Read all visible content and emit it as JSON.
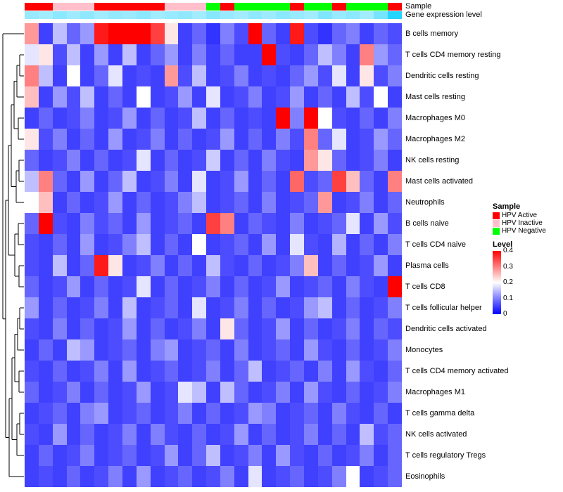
{
  "annotation_tracks": {
    "sample_label": "Sample",
    "expression_label": "Gene expression level"
  },
  "legend": {
    "sample": {
      "title": "Sample",
      "items": [
        {
          "label": "HPV Active",
          "color": "#FF0000"
        },
        {
          "label": "HPV Inactive",
          "color": "#FFC0CB"
        },
        {
          "label": "HPV Negative",
          "color": "#00FF00"
        }
      ]
    },
    "level": {
      "title": "Level",
      "ticks": [
        "0.4",
        "0.3",
        "0.2",
        "0.1",
        "0"
      ],
      "gradient": [
        "#FF0000",
        "#FFFFFF",
        "#0000FF"
      ]
    }
  },
  "chart_data": {
    "type": "heatmap",
    "title": "",
    "rows": [
      "B cells memory",
      "T cells CD4 memory resting",
      "Dendritic cells resting",
      "Mast cells resting",
      "Macrophages M0",
      "Macrophages M2",
      "NK cells resting",
      "Mast cells activated",
      "Neutrophils",
      "B cells naive",
      "T cells CD4 naive",
      "Plasma cells",
      "T cells CD8",
      "T cells follicular helper",
      "Dendritic cells activated",
      "Monocytes",
      "T cells CD4 memory activated",
      "Macrophages M1",
      "T cells gamma delta",
      "NK cells activated",
      "T cells regulatory Tregs",
      "Eosinophils"
    ],
    "n_cols": 27,
    "column_annotations": {
      "sample": [
        "HPV Active",
        "HPV Active",
        "HPV Inactive",
        "HPV Inactive",
        "HPV Inactive",
        "HPV Active",
        "HPV Active",
        "HPV Active",
        "HPV Active",
        "HPV Active",
        "HPV Inactive",
        "HPV Inactive",
        "HPV Inactive",
        "HPV Negative",
        "HPV Active",
        "HPV Negative",
        "HPV Negative",
        "HPV Negative",
        "HPV Negative",
        "HPV Active",
        "HPV Negative",
        "HPV Negative",
        "HPV Active",
        "HPV Negative",
        "HPV Negative",
        "HPV Negative",
        "HPV Active"
      ],
      "gene_expression_level": [
        0.35,
        0.3,
        0.4,
        0.32,
        0.38,
        0.3,
        0.36,
        0.33,
        0.4,
        0.3,
        0.35,
        0.38,
        0.3,
        0.42,
        0.35,
        0.3,
        0.38,
        0.32,
        0.4,
        0.35,
        0.3,
        0.45,
        0.35,
        0.4,
        0.3,
        0.5,
        0.85
      ]
    },
    "color_scale": {
      "min": 0,
      "mid": 0.2,
      "max": 0.4,
      "min_color": "#0000FF",
      "mid_color": "#FFFFFF",
      "max_color": "#FF0000"
    },
    "annotation_expression_colors": {
      "low": "#E8F8FF",
      "high": "#00CFFF"
    },
    "values": [
      [
        0.28,
        0.05,
        0.15,
        0.08,
        0.12,
        0.38,
        0.42,
        0.45,
        0.4,
        0.35,
        0.22,
        0.05,
        0.08,
        0.04,
        0.1,
        0.06,
        0.4,
        0.08,
        0.05,
        0.38,
        0.06,
        0.04,
        0.08,
        0.1,
        0.05,
        0.08,
        0.06
      ],
      [
        0.18,
        0.22,
        0.06,
        0.15,
        0.05,
        0.12,
        0.05,
        0.15,
        0.05,
        0.08,
        0.12,
        0.05,
        0.1,
        0.05,
        0.08,
        0.05,
        0.05,
        0.42,
        0.06,
        0.05,
        0.08,
        0.15,
        0.1,
        0.05,
        0.3,
        0.12,
        0.08
      ],
      [
        0.3,
        0.15,
        0.05,
        0.2,
        0.05,
        0.08,
        0.18,
        0.05,
        0.06,
        0.05,
        0.28,
        0.06,
        0.15,
        0.05,
        0.06,
        0.1,
        0.05,
        0.06,
        0.05,
        0.08,
        0.12,
        0.06,
        0.18,
        0.05,
        0.22,
        0.06,
        0.1
      ],
      [
        0.25,
        0.05,
        0.12,
        0.06,
        0.15,
        0.05,
        0.08,
        0.05,
        0.2,
        0.05,
        0.06,
        0.12,
        0.05,
        0.18,
        0.05,
        0.06,
        0.1,
        0.05,
        0.06,
        0.12,
        0.05,
        0.08,
        0.05,
        0.15,
        0.06,
        0.2,
        0.05
      ],
      [
        0.05,
        0.08,
        0.05,
        0.06,
        0.1,
        0.05,
        0.06,
        0.12,
        0.05,
        0.08,
        0.05,
        0.06,
        0.15,
        0.05,
        0.08,
        0.05,
        0.06,
        0.05,
        0.45,
        0.1,
        0.4,
        0.2,
        0.06,
        0.05,
        0.08,
        0.05,
        0.1
      ],
      [
        0.22,
        0.06,
        0.1,
        0.05,
        0.08,
        0.05,
        0.12,
        0.05,
        0.06,
        0.1,
        0.05,
        0.08,
        0.05,
        0.06,
        0.12,
        0.05,
        0.08,
        0.05,
        0.1,
        0.06,
        0.3,
        0.08,
        0.18,
        0.05,
        0.06,
        0.12,
        0.08
      ],
      [
        0.08,
        0.05,
        0.06,
        0.1,
        0.05,
        0.08,
        0.05,
        0.06,
        0.18,
        0.05,
        0.08,
        0.05,
        0.06,
        0.16,
        0.05,
        0.08,
        0.05,
        0.1,
        0.06,
        0.05,
        0.28,
        0.22,
        0.08,
        0.05,
        0.06,
        0.1,
        0.05
      ],
      [
        0.15,
        0.3,
        0.08,
        0.05,
        0.12,
        0.05,
        0.08,
        0.15,
        0.05,
        0.06,
        0.1,
        0.05,
        0.18,
        0.05,
        0.06,
        0.12,
        0.05,
        0.08,
        0.05,
        0.32,
        0.06,
        0.08,
        0.35,
        0.25,
        0.08,
        0.05,
        0.3
      ],
      [
        0.2,
        0.25,
        0.05,
        0.08,
        0.05,
        0.06,
        0.12,
        0.05,
        0.08,
        0.05,
        0.06,
        0.1,
        0.15,
        0.05,
        0.06,
        0.08,
        0.05,
        0.1,
        0.05,
        0.06,
        0.08,
        0.28,
        0.05,
        0.06,
        0.1,
        0.05,
        0.08
      ],
      [
        0.08,
        0.45,
        0.06,
        0.05,
        0.1,
        0.06,
        0.08,
        0.05,
        0.12,
        0.05,
        0.06,
        0.08,
        0.05,
        0.35,
        0.3,
        0.05,
        0.08,
        0.06,
        0.05,
        0.1,
        0.05,
        0.06,
        0.08,
        0.18,
        0.05,
        0.12,
        0.06
      ],
      [
        0.06,
        0.05,
        0.08,
        0.05,
        0.12,
        0.05,
        0.06,
        0.1,
        0.15,
        0.05,
        0.08,
        0.05,
        0.2,
        0.05,
        0.06,
        0.08,
        0.05,
        0.12,
        0.05,
        0.18,
        0.06,
        0.05,
        0.14,
        0.05,
        0.08,
        0.05,
        0.1
      ],
      [
        0.06,
        0.05,
        0.15,
        0.05,
        0.08,
        0.38,
        0.22,
        0.05,
        0.06,
        0.1,
        0.05,
        0.08,
        0.05,
        0.15,
        0.06,
        0.05,
        0.08,
        0.05,
        0.06,
        0.1,
        0.25,
        0.05,
        0.08,
        0.05,
        0.06,
        0.12,
        0.05
      ],
      [
        0.08,
        0.05,
        0.06,
        0.12,
        0.05,
        0.08,
        0.05,
        0.06,
        0.18,
        0.05,
        0.08,
        0.05,
        0.06,
        0.1,
        0.05,
        0.08,
        0.05,
        0.06,
        0.12,
        0.05,
        0.06,
        0.08,
        0.05,
        0.1,
        0.06,
        0.05,
        0.4
      ],
      [
        0.12,
        0.05,
        0.08,
        0.05,
        0.06,
        0.1,
        0.05,
        0.15,
        0.05,
        0.06,
        0.08,
        0.05,
        0.18,
        0.05,
        0.06,
        0.1,
        0.05,
        0.08,
        0.05,
        0.06,
        0.12,
        0.15,
        0.05,
        0.08,
        0.05,
        0.06,
        0.1
      ],
      [
        0.06,
        0.05,
        0.1,
        0.05,
        0.08,
        0.05,
        0.06,
        0.12,
        0.05,
        0.08,
        0.05,
        0.06,
        0.1,
        0.05,
        0.22,
        0.08,
        0.05,
        0.06,
        0.12,
        0.05,
        0.08,
        0.05,
        0.06,
        0.1,
        0.05,
        0.08,
        0.06
      ],
      [
        0.05,
        0.08,
        0.05,
        0.15,
        0.12,
        0.05,
        0.06,
        0.08,
        0.05,
        0.1,
        0.12,
        0.05,
        0.06,
        0.08,
        0.05,
        0.1,
        0.05,
        0.06,
        0.08,
        0.05,
        0.12,
        0.06,
        0.05,
        0.08,
        0.05,
        0.06,
        0.1
      ],
      [
        0.06,
        0.05,
        0.08,
        0.05,
        0.06,
        0.1,
        0.05,
        0.12,
        0.05,
        0.06,
        0.08,
        0.05,
        0.06,
        0.1,
        0.05,
        0.08,
        0.15,
        0.05,
        0.06,
        0.08,
        0.05,
        0.1,
        0.05,
        0.12,
        0.06,
        0.05,
        0.08
      ],
      [
        0.08,
        0.05,
        0.06,
        0.1,
        0.05,
        0.08,
        0.05,
        0.06,
        0.12,
        0.05,
        0.06,
        0.18,
        0.15,
        0.05,
        0.15,
        0.08,
        0.05,
        0.06,
        0.1,
        0.05,
        0.12,
        0.06,
        0.05,
        0.08,
        0.05,
        0.06,
        0.1
      ],
      [
        0.05,
        0.06,
        0.08,
        0.05,
        0.1,
        0.12,
        0.05,
        0.06,
        0.08,
        0.05,
        0.06,
        0.1,
        0.05,
        0.08,
        0.05,
        0.06,
        0.12,
        0.1,
        0.05,
        0.06,
        0.08,
        0.05,
        0.1,
        0.06,
        0.05,
        0.08,
        0.05
      ],
      [
        0.06,
        0.05,
        0.12,
        0.05,
        0.08,
        0.05,
        0.06,
        0.1,
        0.05,
        0.1,
        0.06,
        0.05,
        0.08,
        0.05,
        0.06,
        0.12,
        0.05,
        0.08,
        0.05,
        0.06,
        0.1,
        0.05,
        0.08,
        0.05,
        0.15,
        0.06,
        0.08
      ],
      [
        0.05,
        0.08,
        0.05,
        0.06,
        0.1,
        0.05,
        0.06,
        0.08,
        0.05,
        0.06,
        0.12,
        0.05,
        0.08,
        0.15,
        0.05,
        0.06,
        0.1,
        0.05,
        0.12,
        0.06,
        0.05,
        0.08,
        0.05,
        0.06,
        0.1,
        0.05,
        0.08
      ],
      [
        0.05,
        0.06,
        0.05,
        0.08,
        0.05,
        0.06,
        0.1,
        0.05,
        0.12,
        0.05,
        0.06,
        0.08,
        0.05,
        0.06,
        0.1,
        0.05,
        0.18,
        0.05,
        0.06,
        0.08,
        0.05,
        0.06,
        0.1,
        0.2,
        0.05,
        0.06,
        0.08
      ]
    ]
  }
}
